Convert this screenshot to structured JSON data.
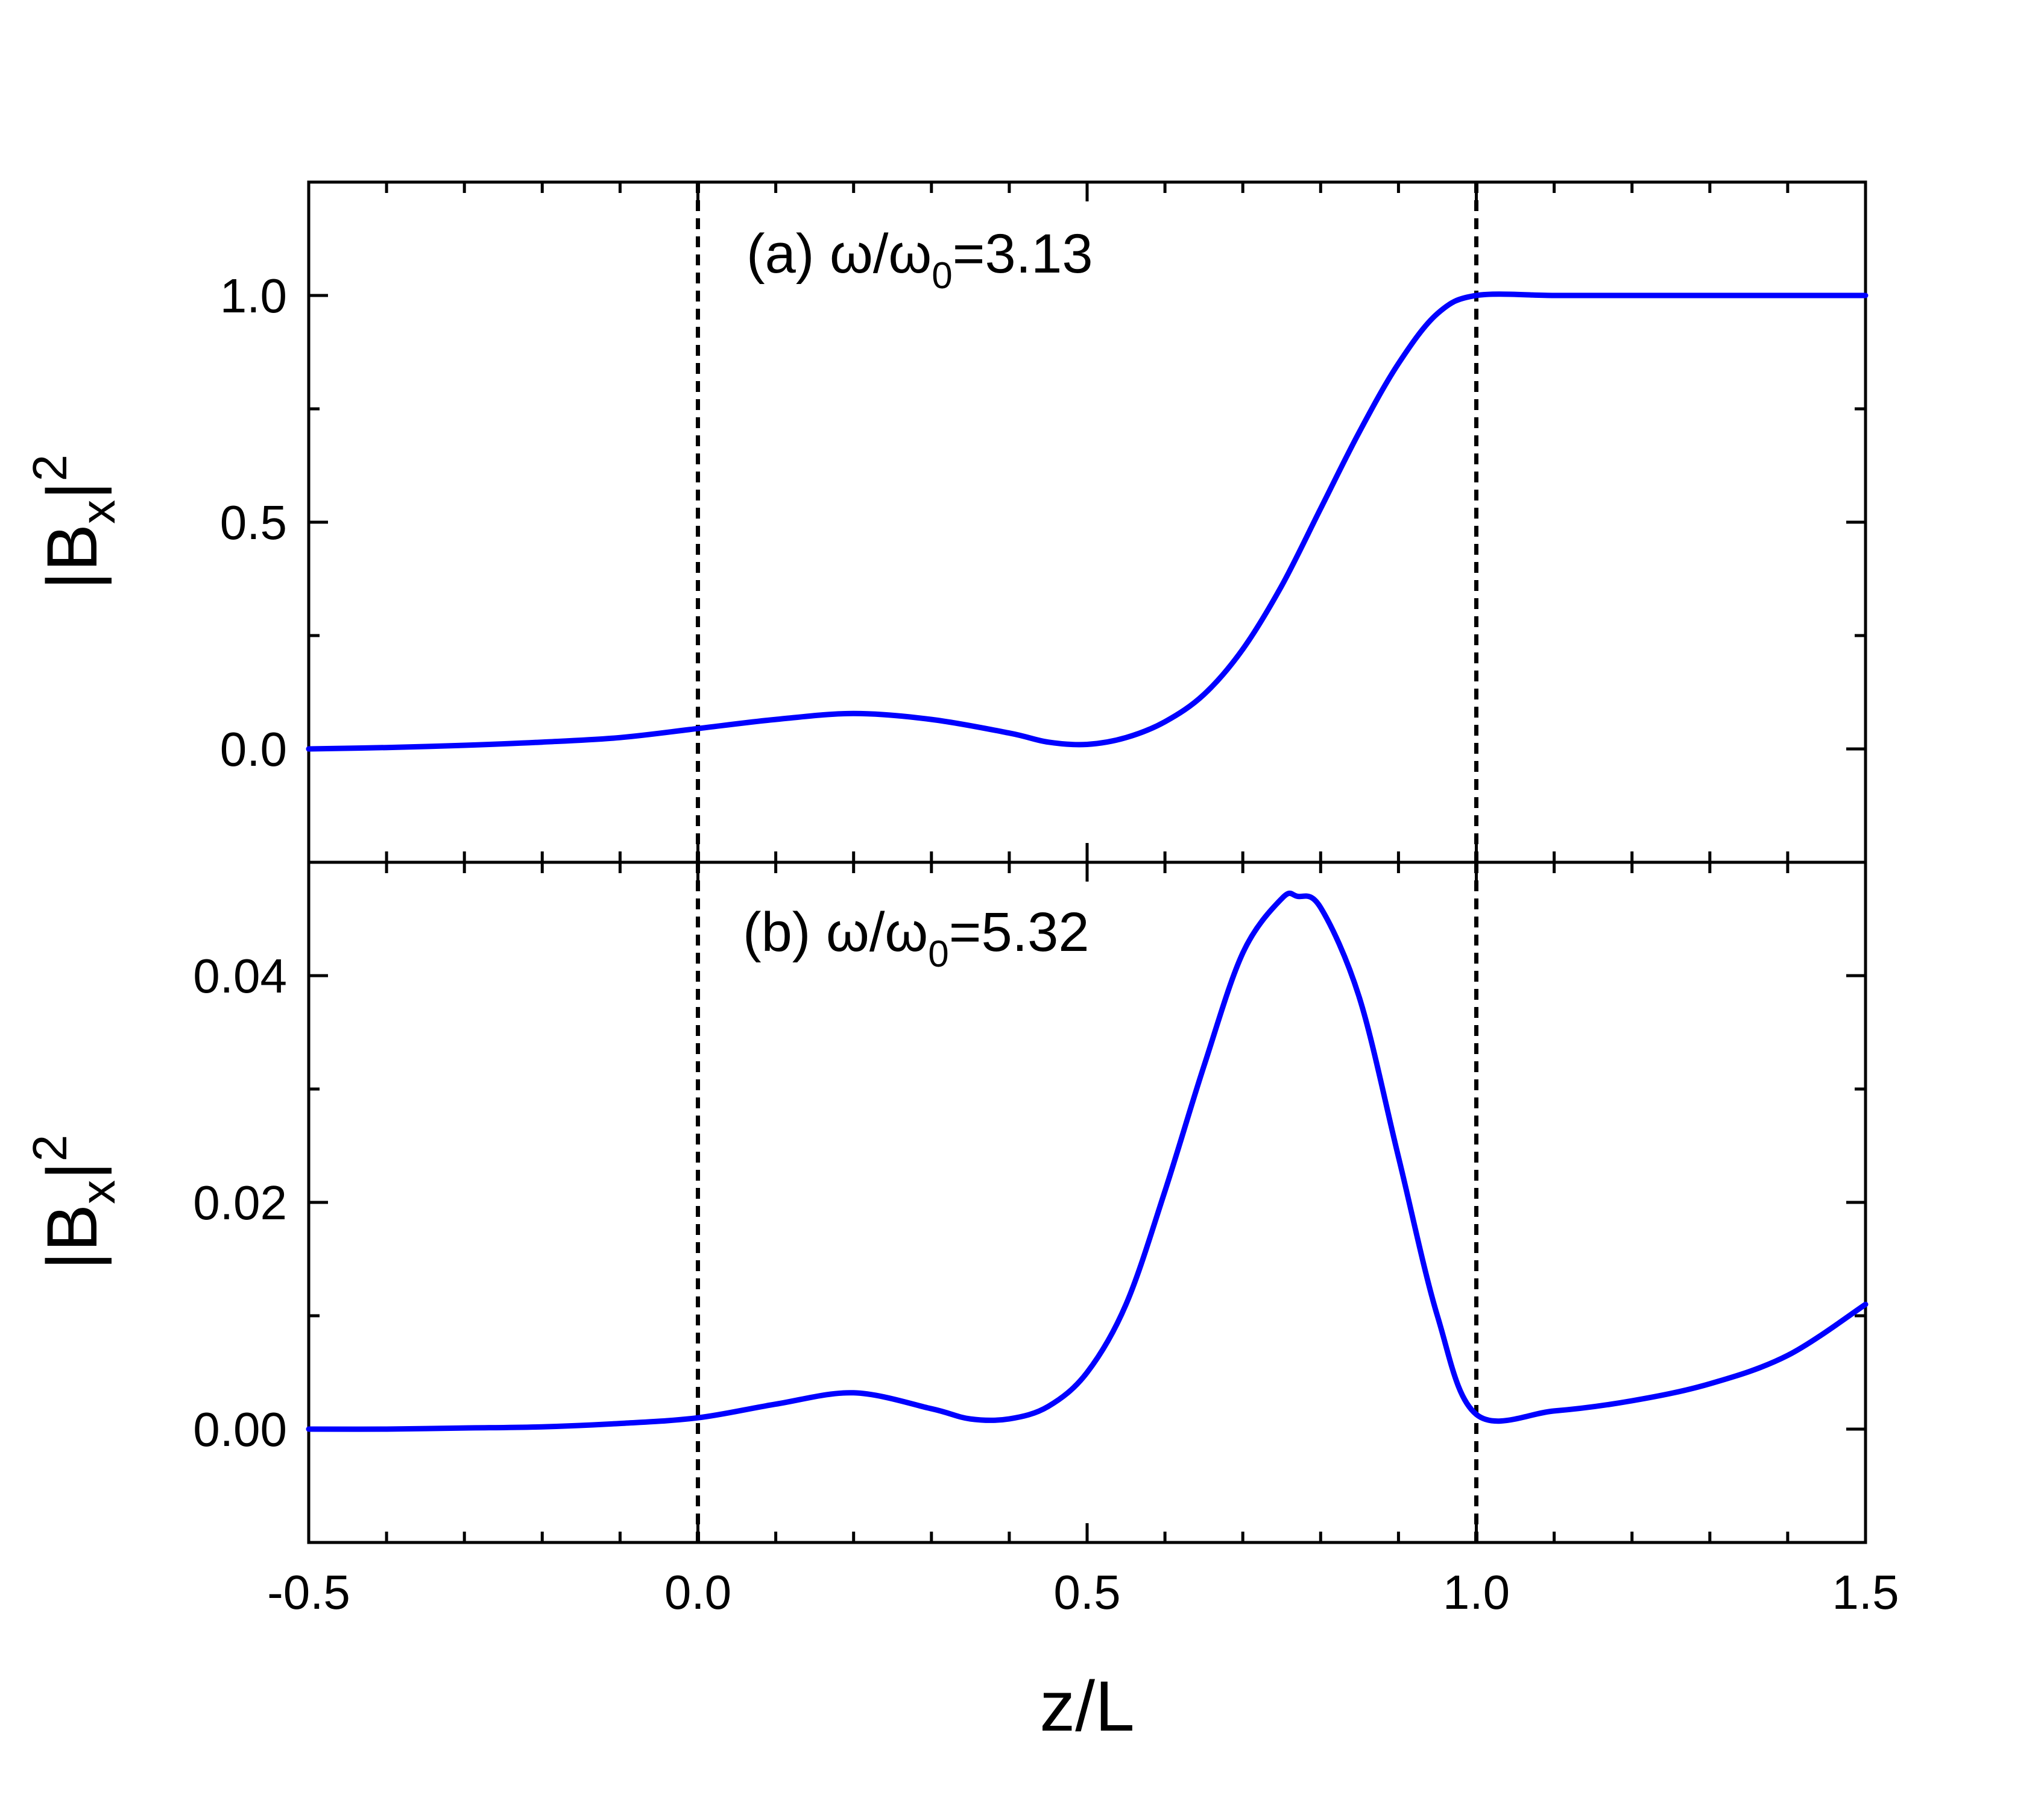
{
  "figure": {
    "xlabel": "z/L",
    "x_ticks": [
      "-0.5",
      "0.0",
      "0.5",
      "1.0",
      "1.5"
    ],
    "line_color": "#0000ff",
    "boundary_lines_x": [
      0,
      1
    ]
  },
  "chart_data": [
    {
      "type": "line",
      "panel": "a",
      "annotation": {
        "prefix": "(a) ω/ω",
        "sub": "0",
        "suffix": "=3.13"
      },
      "ylabel": {
        "main": "|B",
        "sub": "x",
        "close": "|",
        "sup": "2"
      },
      "xlim": [
        -0.5,
        1.5
      ],
      "ylim": [
        -0.25,
        1.25
      ],
      "y_ticks": [
        "0.0",
        "0.5",
        "1.0"
      ],
      "grid": false,
      "series": [
        {
          "x": [
            -0.5,
            -0.4,
            -0.3,
            -0.2,
            -0.1,
            0.0,
            0.1,
            0.2,
            0.3,
            0.4,
            0.45,
            0.5,
            0.55,
            0.6,
            0.65,
            0.7,
            0.75,
            0.8,
            0.85,
            0.9,
            0.95,
            1.0,
            1.1,
            1.2,
            1.3,
            1.4,
            1.5
          ],
          "y": [
            0.0,
            0.003,
            0.008,
            0.015,
            0.025,
            0.045,
            0.065,
            0.078,
            0.065,
            0.035,
            0.015,
            0.01,
            0.025,
            0.06,
            0.12,
            0.22,
            0.36,
            0.53,
            0.7,
            0.85,
            0.96,
            1.0,
            1.0,
            1.0,
            1.0,
            1.0,
            1.0
          ]
        }
      ]
    },
    {
      "type": "line",
      "panel": "b",
      "annotation": {
        "prefix": "(b) ω/ω",
        "sub": "0",
        "suffix": "=5.32"
      },
      "ylabel": {
        "main": "|B",
        "sub": "x",
        "close": "|",
        "sup": "2"
      },
      "xlim": [
        -0.5,
        1.5
      ],
      "ylim": [
        -0.01,
        0.05
      ],
      "y_ticks": [
        "0.00",
        "0.02",
        "0.04"
      ],
      "grid": false,
      "series": [
        {
          "x": [
            -0.5,
            -0.4,
            -0.3,
            -0.2,
            -0.1,
            0.0,
            0.1,
            0.2,
            0.3,
            0.35,
            0.4,
            0.45,
            0.5,
            0.55,
            0.6,
            0.65,
            0.7,
            0.75,
            0.77,
            0.8,
            0.85,
            0.9,
            0.95,
            1.0,
            1.1,
            1.2,
            1.3,
            1.4,
            1.5
          ],
          "y": [
            0.0,
            0.0,
            0.0001,
            0.0002,
            0.0005,
            0.001,
            0.0022,
            0.0032,
            0.0018,
            0.0009,
            0.0009,
            0.002,
            0.005,
            0.011,
            0.021,
            0.032,
            0.042,
            0.0468,
            0.047,
            0.046,
            0.038,
            0.024,
            0.01,
            0.0013,
            0.0016,
            0.0025,
            0.004,
            0.0065,
            0.011
          ]
        }
      ]
    }
  ]
}
